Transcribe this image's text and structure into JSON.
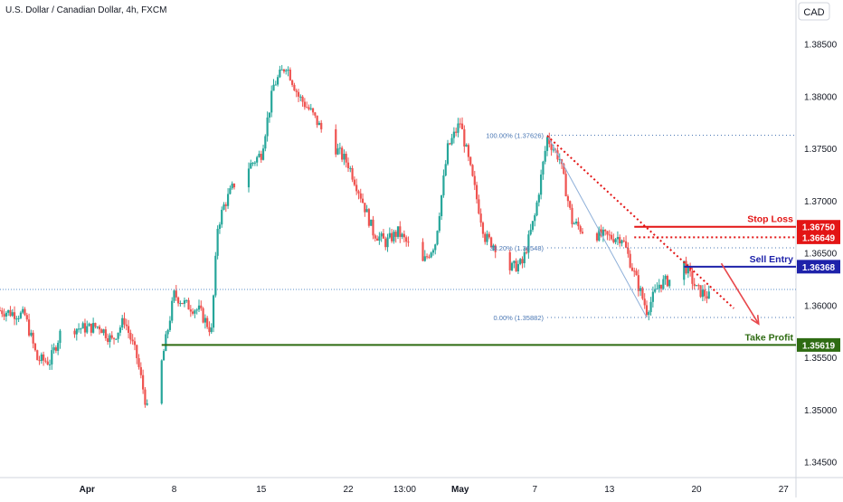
{
  "header": {
    "symbol_title": "U.S. Dollar / Canadian Dollar, 4h, FXCM",
    "currency_button": "CAD"
  },
  "colors": {
    "bull": "#26a69a",
    "bear": "#ef5350",
    "stop": "#e31515",
    "entry": "#1e22aa",
    "profit": "#2e6b12",
    "fib": "#4a77b4",
    "trend": "#e31515",
    "axis_text": "#131722",
    "grid_border": "#d1d4dc"
  },
  "chart_data": {
    "type": "candlestick",
    "title": "U.S. Dollar / Canadian Dollar, 4h, FXCM",
    "y_axis": {
      "unit": "CAD",
      "range": [
        1.3435,
        1.3892
      ],
      "ticks": [
        1.345,
        1.35,
        1.355,
        1.36,
        1.365,
        1.37,
        1.375,
        1.38,
        1.385
      ],
      "tick_labels": [
        "1.34500",
        "1.35000",
        "1.35500",
        "1.36000",
        "1.36500",
        "1.37000",
        "1.37500",
        "1.38000",
        "1.38500"
      ]
    },
    "x_axis": {
      "start_date": "2024-03-25",
      "end_date": "2024-05-28",
      "ticks": [
        {
          "label": "Apr",
          "date": "2024-04-01"
        },
        {
          "label": "8",
          "date": "2024-04-08"
        },
        {
          "label": "15",
          "date": "2024-04-15"
        },
        {
          "label": "22",
          "date": "2024-04-22"
        },
        {
          "label": "13:00",
          "date": "2024-04-26T13:00"
        },
        {
          "label": "May",
          "date": "2024-05-01"
        },
        {
          "label": "7",
          "date": "2024-05-07"
        },
        {
          "label": "13",
          "date": "2024-05-13"
        },
        {
          "label": "20",
          "date": "2024-05-20"
        },
        {
          "label": "27",
          "date": "2024-05-27"
        }
      ]
    },
    "price_path": [
      [
        "2024-03-25",
        1.3595
      ],
      [
        "2024-03-27",
        1.359
      ],
      [
        "2024-03-28",
        1.3548
      ],
      [
        "2024-03-29",
        1.3546
      ],
      [
        "2024-03-30",
        1.3578
      ],
      [
        "2024-04-01",
        1.3578
      ],
      [
        "2024-04-02",
        1.358
      ],
      [
        "2024-04-03",
        1.3566
      ],
      [
        "2024-04-04",
        1.3586
      ],
      [
        "2024-04-05",
        1.355
      ],
      [
        "2024-04-06",
        1.349
      ],
      [
        "2024-04-07",
        1.3545
      ],
      [
        "2024-04-08",
        1.361
      ],
      [
        "2024-04-09",
        1.36
      ],
      [
        "2024-04-10",
        1.3595
      ],
      [
        "2024-04-11",
        1.3575
      ],
      [
        "2024-04-11T12:00",
        1.3675
      ],
      [
        "2024-04-12",
        1.3695
      ],
      [
        "2024-04-13",
        1.372
      ],
      [
        "2024-04-15",
        1.3745
      ],
      [
        "2024-04-16",
        1.381
      ],
      [
        "2024-04-17",
        1.383
      ],
      [
        "2024-04-18",
        1.38
      ],
      [
        "2024-04-19",
        1.3785
      ],
      [
        "2024-04-20",
        1.3765
      ],
      [
        "2024-04-22",
        1.3735
      ],
      [
        "2024-04-23",
        1.3705
      ],
      [
        "2024-04-24",
        1.367
      ],
      [
        "2024-04-25",
        1.366
      ],
      [
        "2024-04-26",
        1.367
      ],
      [
        "2024-04-27",
        1.3655
      ],
      [
        "2024-04-28",
        1.364
      ],
      [
        "2024-04-29",
        1.366
      ],
      [
        "2024-04-30",
        1.375
      ],
      [
        "2024-05-01",
        1.3775
      ],
      [
        "2024-05-02",
        1.372
      ],
      [
        "2024-05-03",
        1.3665
      ],
      [
        "2024-05-04",
        1.3655
      ],
      [
        "2024-05-05",
        1.3635
      ],
      [
        "2024-05-06",
        1.364
      ],
      [
        "2024-05-07",
        1.3685
      ],
      [
        "2024-05-08",
        1.376
      ],
      [
        "2024-05-09",
        1.374
      ],
      [
        "2024-05-10",
        1.368
      ],
      [
        "2024-05-11",
        1.367
      ],
      [
        "2024-05-13",
        1.3665
      ],
      [
        "2024-05-14",
        1.3665
      ],
      [
        "2024-05-15",
        1.363
      ],
      [
        "2024-05-16",
        1.3595
      ],
      [
        "2024-05-17",
        1.362
      ],
      [
        "2024-05-18",
        1.3625
      ],
      [
        "2024-05-19",
        1.364
      ],
      [
        "2024-05-20",
        1.3615
      ],
      [
        "2024-05-21",
        1.3608
      ]
    ],
    "price_lines": [
      {
        "name": "stop-loss",
        "label": "Stop Loss",
        "value": 1.3675,
        "value_label": "1.36750",
        "color_key": "stop",
        "style": "solid",
        "from_date": "2024-05-15"
      },
      {
        "name": "stop-loss-secondary",
        "label": "",
        "value": 1.36649,
        "value_label": "1.36649",
        "color_key": "stop",
        "style": "dotted",
        "from_date": "2024-05-15"
      },
      {
        "name": "sell-entry",
        "label": "Sell Entry",
        "value": 1.36368,
        "value_label": "1.36368",
        "color_key": "entry",
        "style": "solid",
        "from_date": "2024-05-19"
      },
      {
        "name": "take-profit",
        "label": "Take Profit",
        "value": 1.35619,
        "value_label": "1.35619",
        "color_key": "profit",
        "style": "solid",
        "from_date": "2024-04-07"
      }
    ],
    "fibonacci": [
      {
        "label": "100.00% (1.37626)",
        "value": 1.37626
      },
      {
        "label": "38.20% (1.36548)",
        "value": 1.36548
      },
      {
        "label": "0.00% (1.35882)",
        "value": 1.35882
      }
    ],
    "fib_anchor": {
      "start": [
        "2024-05-08",
        1.37626
      ],
      "end": [
        "2024-05-16",
        1.35882
      ]
    },
    "reference_line": {
      "value": 1.3615
    },
    "trendline": {
      "start": [
        "2024-05-08",
        1.3762
      ],
      "end": [
        "2024-05-23",
        1.3597
      ]
    },
    "projection_arrow": {
      "start": [
        "2024-05-22",
        1.364
      ],
      "end": [
        "2024-05-25",
        1.3582
      ]
    }
  }
}
